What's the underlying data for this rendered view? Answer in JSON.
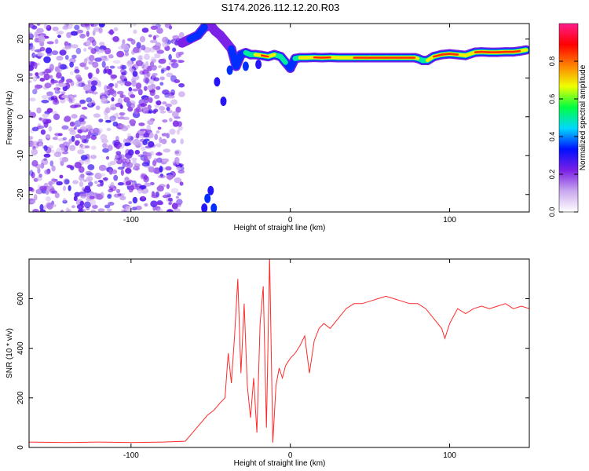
{
  "figure": {
    "title": "S174.2026.112.12.20.R03"
  },
  "chart_data": [
    {
      "type": "heatmap",
      "title": "S174.2026.112.12.20.R03",
      "xlabel": "Height of straight line (km)",
      "ylabel": "Frequency (Hz)",
      "xlim": [
        -164,
        150
      ],
      "ylim": [
        -24.5,
        24
      ],
      "xticks": [
        -100,
        0,
        100
      ],
      "yticks": [
        -20,
        -10,
        0,
        10,
        20
      ],
      "ytick_labels": [
        "-20",
        "-10",
        "0",
        "10",
        "20"
      ],
      "colorbar": {
        "label": "Normalized spectral amplitude",
        "range": [
          0.0,
          1.0
        ],
        "ticks": [
          0.0,
          0.2,
          0.4,
          0.6,
          0.8
        ],
        "tick_labels": [
          "0.0",
          "0.2",
          "0.4",
          "0.6",
          "0.8"
        ],
        "colors": [
          "#ffffff",
          "#c9a8ee",
          "#7a1fe6",
          "#0010ff",
          "#00d8ff",
          "#00ff40",
          "#f0ff00",
          "#ff8000",
          "#ff0000",
          "#ff1c8c"
        ]
      },
      "noise_region": {
        "x_range": [
          -164,
          -68
        ],
        "y_range": [
          -24.5,
          24
        ],
        "level": 0.2
      },
      "ridge": {
        "x": [
          -68,
          -63,
          -58,
          -54,
          -50,
          -47,
          -44,
          -40,
          -37,
          -34,
          -31,
          -28,
          -25,
          -22,
          -18,
          -14,
          -10,
          -6,
          -3,
          0,
          3,
          6,
          10,
          15,
          20,
          25,
          30,
          40,
          50,
          60,
          70,
          75,
          78,
          80,
          83,
          86,
          90,
          95,
          100,
          105,
          110,
          113,
          116,
          120,
          125,
          130,
          135,
          140,
          144,
          148
        ],
        "y": [
          19,
          20,
          21,
          23,
          23.5,
          22,
          21,
          19,
          17.5,
          13,
          16,
          16.5,
          16,
          16,
          15.8,
          15.5,
          16,
          15.5,
          14,
          12.5,
          15,
          15.2,
          15.2,
          15.3,
          15.2,
          15.3,
          15.2,
          15.2,
          15.2,
          15.2,
          15.2,
          15.2,
          15.2,
          15,
          14.5,
          14.5,
          15.5,
          16,
          16.2,
          16,
          15.8,
          16.2,
          16.6,
          16.7,
          16.6,
          16.6,
          16.7,
          16.7,
          16.9,
          17.2
        ],
        "amplitude": [
          0.3,
          0.4,
          0.5,
          0.4,
          0.3,
          0.3,
          0.35,
          0.3,
          0.4,
          0.35,
          0.45,
          0.5,
          0.55,
          0.7,
          0.85,
          0.9,
          0.7,
          0.55,
          0.5,
          0.45,
          0.6,
          0.7,
          0.8,
          0.85,
          0.85,
          0.85,
          0.8,
          0.9,
          0.9,
          0.9,
          0.88,
          0.88,
          0.85,
          0.8,
          0.65,
          0.7,
          0.85,
          0.85,
          0.9,
          0.85,
          0.75,
          0.8,
          0.85,
          0.9,
          0.9,
          0.9,
          0.9,
          0.9,
          0.85,
          0.7
        ]
      },
      "blobs": [
        {
          "x": -46,
          "y": 9,
          "value": 0.3
        },
        {
          "x": -42,
          "y": 4,
          "value": 0.3
        },
        {
          "x": -38,
          "y": 12,
          "value": 0.35
        },
        {
          "x": -28,
          "y": 13,
          "value": 0.35
        },
        {
          "x": -20,
          "y": 13.5,
          "value": 0.3
        },
        {
          "x": -50,
          "y": -19,
          "value": 0.3
        },
        {
          "x": -52,
          "y": -21,
          "value": 0.35
        },
        {
          "x": -54,
          "y": -23.5,
          "value": 0.3
        },
        {
          "x": -48,
          "y": -23.5,
          "value": 0.35
        }
      ]
    },
    {
      "type": "line",
      "xlabel": "Height of straight line (km)",
      "ylabel": "SNR (10 * v/v)",
      "xlim": [
        -164,
        150
      ],
      "ylim": [
        0,
        760
      ],
      "xticks": [
        -100,
        0,
        100
      ],
      "yticks": [
        0,
        200,
        400,
        600
      ],
      "line_color": "#ff2b2b",
      "series": [
        {
          "x": [
            -164,
            -140,
            -120,
            -100,
            -80,
            -66,
            -60,
            -56,
            -52,
            -48,
            -44,
            -41,
            -39,
            -37,
            -35,
            -33,
            -31,
            -29,
            -27,
            -25,
            -23,
            -21,
            -19,
            -17,
            -15,
            -13,
            -11,
            -9,
            -7,
            -5,
            -3,
            0,
            3,
            6,
            9,
            12,
            15,
            18,
            21,
            25,
            30,
            35,
            40,
            45,
            50,
            55,
            60,
            65,
            70,
            75,
            80,
            85,
            90,
            95,
            97,
            100,
            105,
            110,
            115,
            120,
            125,
            130,
            135,
            140,
            145,
            150
          ],
          "y": [
            22,
            20,
            22,
            20,
            22,
            25,
            70,
            100,
            130,
            150,
            180,
            200,
            380,
            260,
            450,
            680,
            300,
            580,
            250,
            120,
            280,
            60,
            500,
            650,
            80,
            770,
            20,
            250,
            320,
            280,
            330,
            360,
            380,
            410,
            450,
            300,
            430,
            480,
            500,
            480,
            520,
            560,
            580,
            580,
            590,
            600,
            610,
            600,
            590,
            580,
            580,
            560,
            520,
            480,
            440,
            500,
            560,
            540,
            560,
            570,
            560,
            570,
            580,
            560,
            570,
            560
          ]
        }
      ]
    }
  ]
}
